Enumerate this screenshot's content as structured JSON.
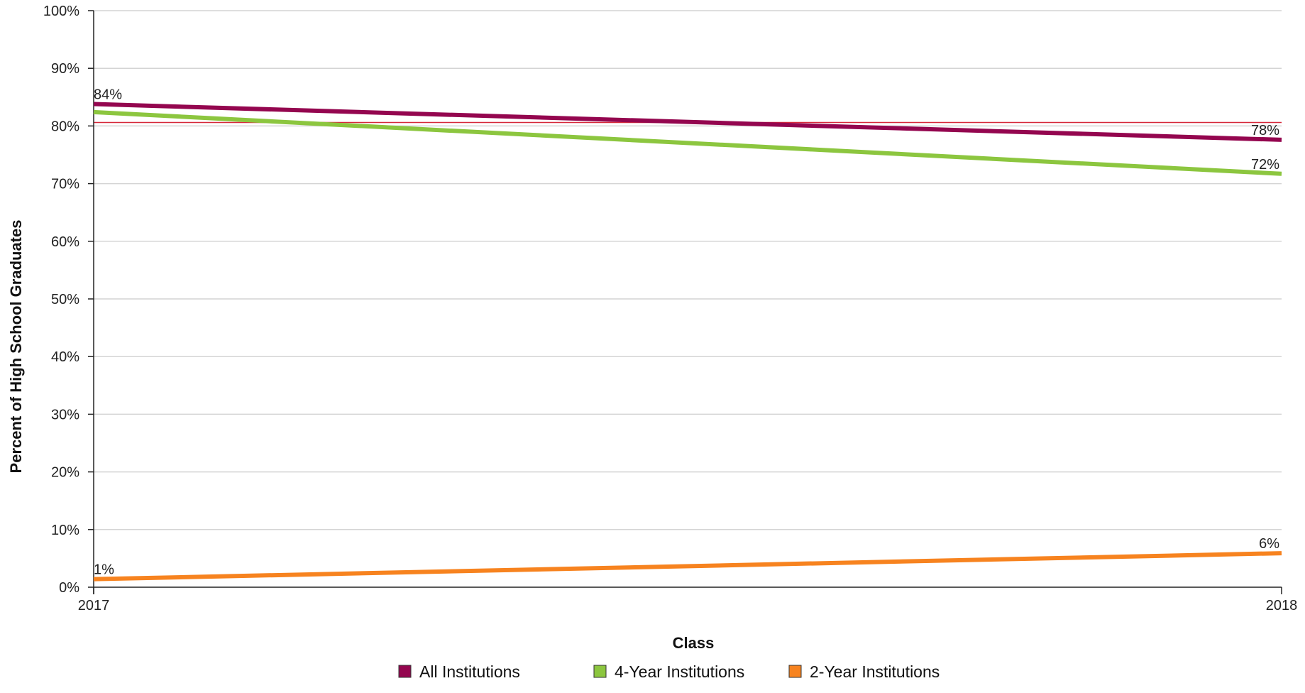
{
  "chart_data": {
    "type": "line",
    "title": "",
    "xlabel": "Class",
    "ylabel": "Percent of High School Graduates",
    "x": [
      "2017",
      "2018"
    ],
    "ylim": [
      0,
      100
    ],
    "yticks": [
      "0%",
      "10%",
      "20%",
      "30%",
      "40%",
      "50%",
      "60%",
      "70%",
      "80%",
      "90%",
      "100%"
    ],
    "grid": true,
    "legend_position": "bottom",
    "series": [
      {
        "name": "All Institutions",
        "values": [
          83.8,
          77.6
        ],
        "labels": [
          "84%",
          "78%"
        ],
        "color": "#94064f"
      },
      {
        "name": "4-Year Institutions",
        "values": [
          82.4,
          71.7
        ],
        "labels": [
          "",
          "72%"
        ],
        "color": "#8cc63f"
      },
      {
        "name": "2-Year Institutions",
        "values": [
          1.4,
          5.9
        ],
        "labels": [
          "1%",
          "6%"
        ],
        "color": "#f7831f"
      }
    ],
    "reference_line": {
      "value": 80.6,
      "color": "#d6283a"
    }
  }
}
